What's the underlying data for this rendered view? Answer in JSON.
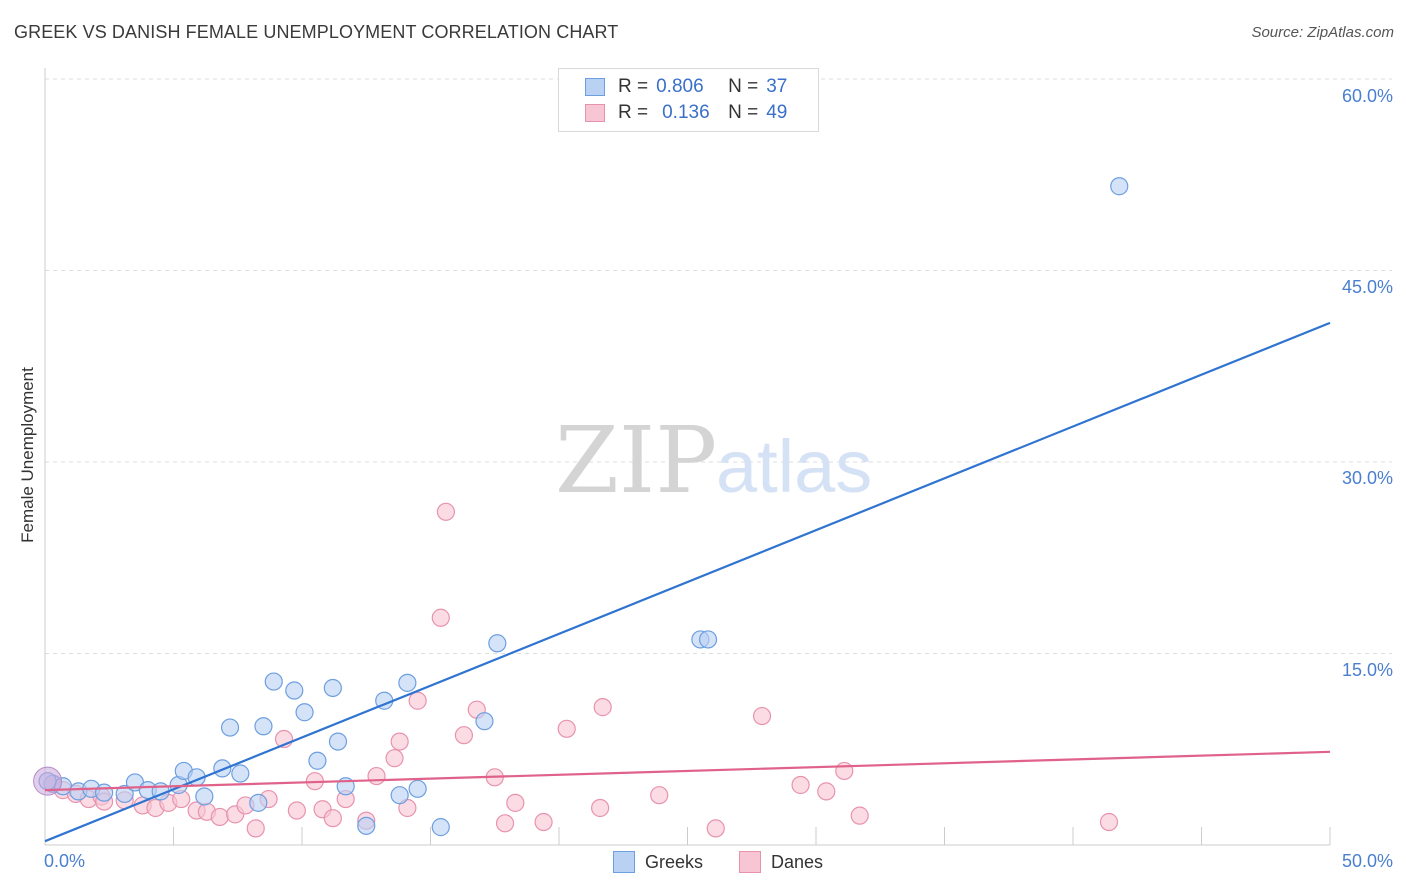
{
  "title": "GREEK VS DANISH FEMALE UNEMPLOYMENT CORRELATION CHART",
  "source": "Source: ZipAtlas.com",
  "watermark": {
    "zip": "ZIP",
    "atlas": "atlas"
  },
  "legend": {
    "greeks": {
      "r_label": "R =",
      "r_value": "0.806",
      "n_label": "N =",
      "n_value": "37"
    },
    "danes": {
      "r_label": "R =",
      "r_value": "0.136",
      "n_label": "N =",
      "n_value": "49"
    }
  },
  "colors": {
    "greeks_fill": "#b9d1f3",
    "greeks_stroke": "#6d9fe0",
    "greeks_line": "#2f74d0",
    "danes_fill": "#f8c5d4",
    "danes_stroke": "#e893ae",
    "danes_line": "#e0628a",
    "tick_text": "#4a7fd0",
    "grid": "#dddddd"
  },
  "chart_data": {
    "type": "scatter",
    "title": "GREEK VS DANISH FEMALE UNEMPLOYMENT CORRELATION CHART",
    "xlabel": "",
    "ylabel": "Female Unemployment",
    "xlim": [
      0,
      50
    ],
    "ylim": [
      0,
      60
    ],
    "x_tick_labels": [
      "0.0%",
      "50.0%"
    ],
    "y_tick_labels": [
      "15.0%",
      "30.0%",
      "45.0%",
      "60.0%"
    ],
    "y_ticks": [
      15,
      30,
      45,
      60
    ],
    "grid": true,
    "legend_position": "top-center",
    "series": [
      {
        "name": "Greeks",
        "r": 0.806,
        "n": 37,
        "trend": {
          "x": [
            0,
            50
          ],
          "y": [
            0.3,
            40.9
          ]
        },
        "points": [
          [
            0.3,
            4.8
          ],
          [
            0.7,
            4.6
          ],
          [
            1.3,
            4.2
          ],
          [
            1.8,
            4.4
          ],
          [
            2.3,
            4.1
          ],
          [
            3.1,
            4.0
          ],
          [
            3.5,
            4.9
          ],
          [
            4.0,
            4.3
          ],
          [
            4.5,
            4.2
          ],
          [
            5.2,
            4.7
          ],
          [
            5.4,
            5.8
          ],
          [
            5.9,
            5.3
          ],
          [
            6.2,
            3.8
          ],
          [
            6.9,
            6.0
          ],
          [
            7.2,
            9.2
          ],
          [
            7.6,
            5.6
          ],
          [
            8.3,
            3.3
          ],
          [
            8.5,
            9.3
          ],
          [
            8.9,
            12.8
          ],
          [
            9.7,
            12.1
          ],
          [
            10.1,
            10.4
          ],
          [
            10.6,
            6.6
          ],
          [
            11.2,
            12.3
          ],
          [
            11.4,
            8.1
          ],
          [
            11.7,
            4.6
          ],
          [
            12.5,
            1.5
          ],
          [
            13.2,
            11.3
          ],
          [
            13.8,
            3.9
          ],
          [
            14.1,
            12.7
          ],
          [
            14.5,
            4.4
          ],
          [
            15.4,
            1.4
          ],
          [
            17.1,
            9.7
          ],
          [
            17.6,
            15.8
          ],
          [
            25.5,
            16.1
          ],
          [
            25.8,
            16.1
          ],
          [
            41.8,
            51.6
          ],
          [
            0.1,
            5.0
          ]
        ]
      },
      {
        "name": "Danes",
        "r": 0.136,
        "n": 49,
        "trend": {
          "x": [
            0,
            50
          ],
          "y": [
            4.3,
            7.3
          ]
        },
        "points": [
          [
            0.3,
            4.8
          ],
          [
            0.7,
            4.3
          ],
          [
            1.2,
            4.0
          ],
          [
            1.7,
            3.6
          ],
          [
            2.2,
            3.8
          ],
          [
            2.3,
            3.4
          ],
          [
            3.1,
            3.5
          ],
          [
            3.8,
            3.1
          ],
          [
            4.3,
            2.9
          ],
          [
            4.8,
            3.3
          ],
          [
            5.3,
            3.6
          ],
          [
            5.9,
            2.7
          ],
          [
            6.3,
            2.6
          ],
          [
            6.8,
            2.2
          ],
          [
            7.4,
            2.4
          ],
          [
            7.8,
            3.1
          ],
          [
            8.2,
            1.3
          ],
          [
            8.7,
            3.6
          ],
          [
            9.3,
            8.3
          ],
          [
            9.8,
            2.7
          ],
          [
            10.5,
            5.0
          ],
          [
            10.8,
            2.8
          ],
          [
            11.2,
            2.1
          ],
          [
            11.7,
            3.6
          ],
          [
            12.5,
            1.9
          ],
          [
            12.9,
            5.4
          ],
          [
            13.6,
            6.8
          ],
          [
            13.8,
            8.1
          ],
          [
            14.1,
            2.9
          ],
          [
            14.5,
            11.3
          ],
          [
            15.4,
            17.8
          ],
          [
            15.6,
            26.1
          ],
          [
            16.3,
            8.6
          ],
          [
            16.8,
            10.6
          ],
          [
            17.5,
            5.3
          ],
          [
            17.9,
            1.7
          ],
          [
            18.3,
            3.3
          ],
          [
            19.4,
            1.8
          ],
          [
            20.3,
            9.1
          ],
          [
            21.6,
            2.9
          ],
          [
            21.7,
            10.8
          ],
          [
            23.9,
            3.9
          ],
          [
            26.1,
            1.3
          ],
          [
            27.9,
            10.1
          ],
          [
            29.4,
            4.7
          ],
          [
            30.4,
            4.2
          ],
          [
            31.1,
            5.8
          ],
          [
            31.7,
            2.3
          ],
          [
            41.4,
            1.8
          ]
        ]
      }
    ]
  },
  "bottom_legend": {
    "greeks": "Greeks",
    "danes": "Danes"
  }
}
